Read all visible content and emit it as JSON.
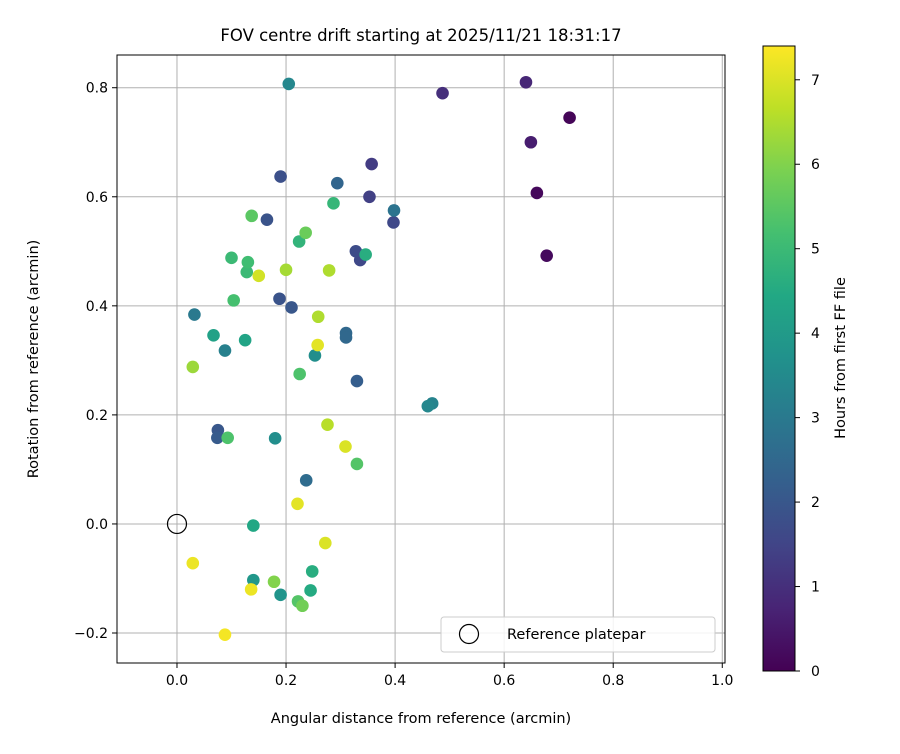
{
  "chart_data": {
    "type": "scatter",
    "title": "FOV centre drift starting at 2025/11/21 18:31:17",
    "xlabel": "Angular distance from reference (arcmin)",
    "ylabel": "Rotation from reference (arcmin)",
    "xlim": [
      -0.11,
      1.005
    ],
    "ylim": [
      -0.255,
      0.86
    ],
    "xticks": [
      0.0,
      0.2,
      0.4,
      0.6,
      0.8,
      1.0
    ],
    "xtick_labels": [
      "0.0",
      "0.2",
      "0.4",
      "0.6",
      "0.8",
      "1.0"
    ],
    "yticks": [
      -0.2,
      0.0,
      0.2,
      0.4,
      0.6,
      0.8
    ],
    "ytick_labels": [
      "−0.2",
      "0.0",
      "0.2",
      "0.4",
      "0.6",
      "0.8"
    ],
    "grid": true,
    "legend": {
      "position": "lower-right",
      "entries": [
        "Reference platepar"
      ]
    },
    "reference_point": {
      "x": 0.0,
      "y": 0.0,
      "label": "Reference platepar"
    },
    "colorbar": {
      "label": "Hours from first FF file",
      "colormap": "viridis",
      "range": [
        0,
        7.4
      ],
      "ticks": [
        0,
        1,
        2,
        3,
        4,
        5,
        6,
        7
      ],
      "tick_labels": [
        "0",
        "1",
        "2",
        "3",
        "4",
        "5",
        "6",
        "7"
      ]
    },
    "points": [
      {
        "x": 0.72,
        "y": 0.745,
        "t": 0.1
      },
      {
        "x": 0.66,
        "y": 0.607,
        "t": 0.15
      },
      {
        "x": 0.678,
        "y": 0.492,
        "t": 0.2
      },
      {
        "x": 0.649,
        "y": 0.7,
        "t": 0.6
      },
      {
        "x": 0.64,
        "y": 0.81,
        "t": 0.8
      },
      {
        "x": 0.487,
        "y": 0.79,
        "t": 1.0
      },
      {
        "x": 0.357,
        "y": 0.66,
        "t": 1.3
      },
      {
        "x": 0.353,
        "y": 0.6,
        "t": 1.4
      },
      {
        "x": 0.397,
        "y": 0.553,
        "t": 1.6
      },
      {
        "x": 0.336,
        "y": 0.484,
        "t": 1.6
      },
      {
        "x": 0.328,
        "y": 0.5,
        "t": 1.7
      },
      {
        "x": 0.19,
        "y": 0.637,
        "t": 1.8
      },
      {
        "x": 0.165,
        "y": 0.558,
        "t": 1.9
      },
      {
        "x": 0.188,
        "y": 0.413,
        "t": 1.9
      },
      {
        "x": 0.21,
        "y": 0.397,
        "t": 2.0
      },
      {
        "x": 0.075,
        "y": 0.172,
        "t": 2.0
      },
      {
        "x": 0.074,
        "y": 0.158,
        "t": 2.1
      },
      {
        "x": 0.33,
        "y": 0.262,
        "t": 2.2
      },
      {
        "x": 0.294,
        "y": 0.625,
        "t": 2.4
      },
      {
        "x": 0.31,
        "y": 0.35,
        "t": 2.5
      },
      {
        "x": 0.31,
        "y": 0.342,
        "t": 2.5
      },
      {
        "x": 0.237,
        "y": 0.08,
        "t": 2.6
      },
      {
        "x": 0.398,
        "y": 0.575,
        "t": 2.8
      },
      {
        "x": 0.032,
        "y": 0.384,
        "t": 3.0
      },
      {
        "x": 0.088,
        "y": 0.318,
        "t": 3.2
      },
      {
        "x": 0.468,
        "y": 0.221,
        "t": 3.3
      },
      {
        "x": 0.46,
        "y": 0.216,
        "t": 3.4
      },
      {
        "x": 0.205,
        "y": 0.807,
        "t": 3.4
      },
      {
        "x": 0.18,
        "y": 0.157,
        "t": 3.6
      },
      {
        "x": 0.253,
        "y": 0.309,
        "t": 3.6
      },
      {
        "x": 0.19,
        "y": -0.13,
        "t": 3.8
      },
      {
        "x": 0.14,
        "y": -0.103,
        "t": 3.9
      },
      {
        "x": 0.067,
        "y": 0.346,
        "t": 4.2
      },
      {
        "x": 0.125,
        "y": 0.337,
        "t": 4.3
      },
      {
        "x": 0.14,
        "y": -0.003,
        "t": 4.4
      },
      {
        "x": 0.245,
        "y": -0.122,
        "t": 4.5
      },
      {
        "x": 0.248,
        "y": -0.087,
        "t": 4.6
      },
      {
        "x": 0.346,
        "y": 0.494,
        "t": 4.6
      },
      {
        "x": 0.224,
        "y": 0.518,
        "t": 4.8
      },
      {
        "x": 0.287,
        "y": 0.588,
        "t": 4.9
      },
      {
        "x": 0.1,
        "y": 0.488,
        "t": 5.0
      },
      {
        "x": 0.128,
        "y": 0.462,
        "t": 5.0
      },
      {
        "x": 0.13,
        "y": 0.48,
        "t": 5.1
      },
      {
        "x": 0.104,
        "y": 0.41,
        "t": 5.2
      },
      {
        "x": 0.093,
        "y": 0.158,
        "t": 5.3
      },
      {
        "x": 0.225,
        "y": 0.275,
        "t": 5.3
      },
      {
        "x": 0.222,
        "y": -0.142,
        "t": 5.4
      },
      {
        "x": 0.33,
        "y": 0.11,
        "t": 5.4
      },
      {
        "x": 0.137,
        "y": 0.565,
        "t": 5.5
      },
      {
        "x": 0.236,
        "y": 0.534,
        "t": 5.7
      },
      {
        "x": 0.23,
        "y": -0.15,
        "t": 5.8
      },
      {
        "x": 0.178,
        "y": -0.106,
        "t": 6.0
      },
      {
        "x": 0.029,
        "y": 0.288,
        "t": 6.3
      },
      {
        "x": 0.2,
        "y": 0.466,
        "t": 6.4
      },
      {
        "x": 0.279,
        "y": 0.465,
        "t": 6.5
      },
      {
        "x": 0.259,
        "y": 0.38,
        "t": 6.5
      },
      {
        "x": 0.276,
        "y": 0.182,
        "t": 6.6
      },
      {
        "x": 0.15,
        "y": 0.455,
        "t": 6.9
      },
      {
        "x": 0.309,
        "y": 0.142,
        "t": 7.0
      },
      {
        "x": 0.272,
        "y": -0.035,
        "t": 7.0
      },
      {
        "x": 0.258,
        "y": 0.328,
        "t": 7.1
      },
      {
        "x": 0.221,
        "y": 0.037,
        "t": 7.1
      },
      {
        "x": 0.029,
        "y": -0.072,
        "t": 7.2
      },
      {
        "x": 0.136,
        "y": -0.12,
        "t": 7.2
      },
      {
        "x": 0.088,
        "y": -0.203,
        "t": 7.3
      }
    ]
  }
}
